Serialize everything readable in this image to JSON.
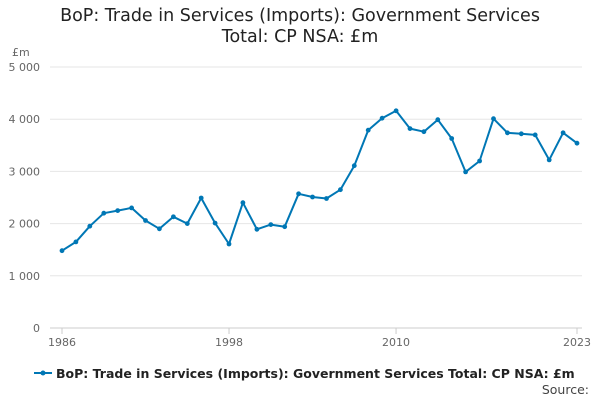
{
  "title_line1": "BoP: Trade in Services (Imports): Government Services",
  "title_line2": "Total: CP NSA: £m",
  "legend": {
    "label": "BoP: Trade in Services (Imports): Government Services Total: CP NSA: £m"
  },
  "source_label": "Source:",
  "colors": {
    "series": "#0077b5",
    "grid": "#e6e6e6",
    "axis": "#cccccc",
    "text": "#666666"
  },
  "chart_data": {
    "type": "line",
    "title": "BoP: Trade in Services (Imports): Government Services Total: CP NSA: £m",
    "ylabel": "£m",
    "xlabel": "",
    "ylim": [
      0,
      5000
    ],
    "xlim": [
      1986,
      2023
    ],
    "y_ticks": [
      0,
      1000,
      2000,
      3000,
      4000,
      5000
    ],
    "y_tick_labels": [
      "0",
      "1 000",
      "2 000",
      "3 000",
      "4 000",
      "5 000"
    ],
    "x_ticks": [
      1986,
      1998,
      2010,
      2023
    ],
    "x_tick_labels": [
      "1986",
      "1998",
      "2010",
      "2023"
    ],
    "grid": true,
    "legend_position": "bottom",
    "series": [
      {
        "name": "BoP: Trade in Services (Imports): Government Services Total: CP NSA: £m",
        "x": [
          1986,
          1987,
          1988,
          1989,
          1990,
          1991,
          1992,
          1993,
          1994,
          1995,
          1996,
          1997,
          1998,
          1999,
          2000,
          2001,
          2002,
          2003,
          2004,
          2005,
          2006,
          2007,
          2008,
          2009,
          2010,
          2011,
          2012,
          2013,
          2014,
          2015,
          2016,
          2017,
          2018,
          2019,
          2020,
          2021,
          2022,
          2023
        ],
        "values": [
          1480,
          1650,
          1950,
          2200,
          2250,
          2300,
          2060,
          1900,
          2130,
          2000,
          2490,
          2010,
          1610,
          2400,
          1890,
          1980,
          1940,
          2570,
          2510,
          2480,
          2650,
          3110,
          3790,
          4020,
          4160,
          3820,
          3760,
          3990,
          3630,
          2990,
          3200,
          4010,
          3740,
          3720,
          3700,
          3220,
          3740,
          3540
        ]
      }
    ]
  }
}
